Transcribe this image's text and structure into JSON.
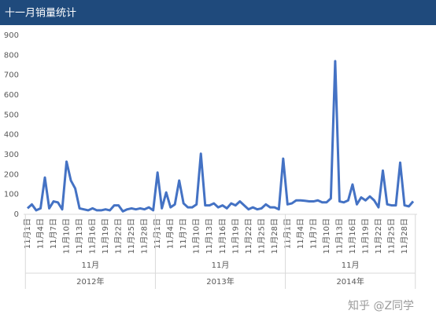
{
  "chart_data": {
    "type": "line",
    "title": "十一月销量统计",
    "categories": [
      "11月1日",
      null,
      null,
      "11月4日",
      null,
      null,
      "11月7日",
      null,
      null,
      "11月10日",
      null,
      null,
      "11月13日",
      null,
      null,
      "11月16日",
      null,
      null,
      "11月19日",
      null,
      null,
      "11月22日",
      null,
      null,
      "11月25日",
      null,
      null,
      "11月28日",
      null,
      null,
      "11月1日",
      null,
      null,
      "11月4日",
      null,
      null,
      "11月7日",
      null,
      null,
      "11月10日",
      null,
      null,
      "11月13日",
      null,
      null,
      "11月16日",
      null,
      null,
      "11月19日",
      null,
      null,
      "11月22日",
      null,
      null,
      "11月25日",
      null,
      null,
      "11月28日",
      null,
      null,
      "11月1日",
      null,
      null,
      "11月4日",
      null,
      null,
      "11月7日",
      null,
      null,
      "11月10日",
      null,
      null,
      "11月13日",
      null,
      null,
      "11月16日",
      null,
      null,
      "11月19日",
      null,
      null,
      "11月22日",
      null,
      null,
      "11月25日",
      null,
      null,
      "11月28日",
      null,
      null
    ],
    "months": [
      "11月",
      "11月",
      "11月"
    ],
    "years": [
      "2012年",
      "2013年",
      "2014年"
    ],
    "series": [
      {
        "color": "#4472c4",
        "values": [
          30,
          50,
          20,
          30,
          185,
          30,
          65,
          60,
          25,
          265,
          170,
          130,
          30,
          25,
          20,
          30,
          20,
          20,
          25,
          20,
          45,
          45,
          15,
          25,
          30,
          25,
          30,
          25,
          35,
          20,
          210,
          30,
          110,
          35,
          50,
          170,
          55,
          35,
          35,
          50,
          305,
          45,
          45,
          55,
          35,
          45,
          30,
          55,
          45,
          65,
          45,
          25,
          35,
          25,
          30,
          50,
          35,
          35,
          25,
          280,
          50,
          55,
          70,
          70,
          68,
          65,
          65,
          70,
          60,
          60,
          80,
          770,
          65,
          60,
          70,
          150,
          50,
          85,
          70,
          90,
          70,
          35,
          220,
          50,
          45,
          45,
          260,
          45,
          40,
          65
        ]
      }
    ],
    "ylim": [
      0,
      900
    ],
    "yticks": [
      0,
      100,
      200,
      300,
      400,
      500,
      600,
      700,
      800,
      900
    ],
    "grid": false,
    "watermark": "知乎 @Z同学"
  }
}
